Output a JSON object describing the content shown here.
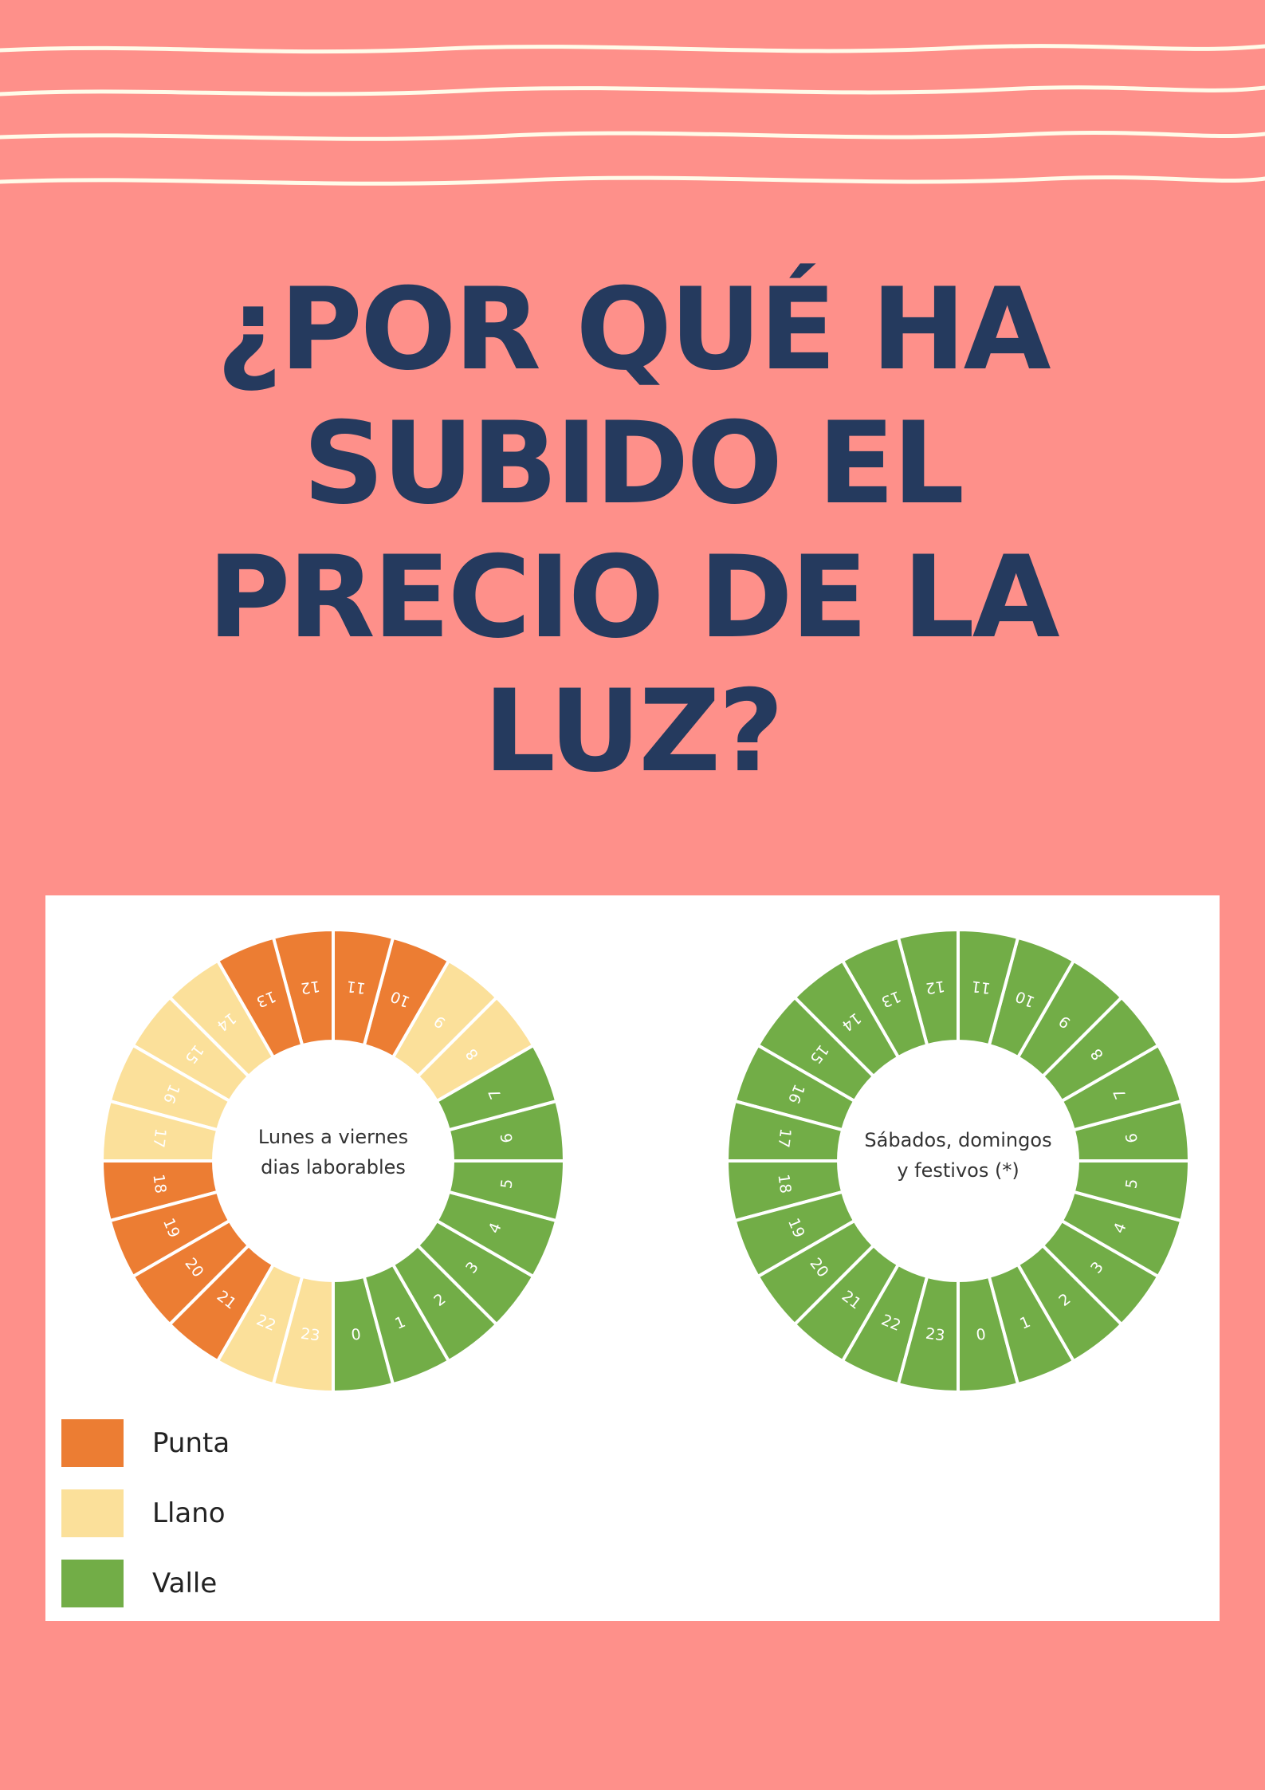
{
  "page": {
    "title_lines": [
      "¿POR QUÉ HA",
      "SUBIDO EL",
      "PRECIO DE LA",
      "LUZ?"
    ]
  },
  "colors": {
    "background": "#fe908a",
    "title": "#253a5e",
    "waves": "#fffbe9",
    "punta": "#ec7d33",
    "llano": "#fbe09a",
    "valle": "#72ad47"
  },
  "chart_data": [
    {
      "type": "pie",
      "variant": "donut",
      "center_label": [
        "Lunes a viernes",
        "dias laborables"
      ],
      "hours": [
        "0",
        "1",
        "2",
        "3",
        "4",
        "5",
        "6",
        "7",
        "8",
        "9",
        "10",
        "11",
        "12",
        "13",
        "14",
        "15",
        "16",
        "17",
        "18",
        "19",
        "20",
        "21",
        "22",
        "23"
      ],
      "periods": [
        "Valle",
        "Valle",
        "Valle",
        "Valle",
        "Valle",
        "Valle",
        "Valle",
        "Valle",
        "Llano",
        "Llano",
        "Punta",
        "Punta",
        "Punta",
        "Punta",
        "Llano",
        "Llano",
        "Llano",
        "Llano",
        "Punta",
        "Punta",
        "Punta",
        "Punta",
        "Llano",
        "Llano"
      ]
    },
    {
      "type": "pie",
      "variant": "donut",
      "center_label": [
        "Sábados, domingos",
        "y festivos (*)"
      ],
      "hours": [
        "0",
        "1",
        "2",
        "3",
        "4",
        "5",
        "6",
        "7",
        "8",
        "9",
        "10",
        "11",
        "12",
        "13",
        "14",
        "15",
        "16",
        "17",
        "18",
        "19",
        "20",
        "21",
        "22",
        "23"
      ],
      "periods": [
        "Valle",
        "Valle",
        "Valle",
        "Valle",
        "Valle",
        "Valle",
        "Valle",
        "Valle",
        "Valle",
        "Valle",
        "Valle",
        "Valle",
        "Valle",
        "Valle",
        "Valle",
        "Valle",
        "Valle",
        "Valle",
        "Valle",
        "Valle",
        "Valle",
        "Valle",
        "Valle",
        "Valle"
      ]
    }
  ],
  "legend": [
    {
      "label": "Punta",
      "period": "Punta"
    },
    {
      "label": "Llano",
      "period": "Llano"
    },
    {
      "label": "Valle",
      "period": "Valle"
    }
  ]
}
